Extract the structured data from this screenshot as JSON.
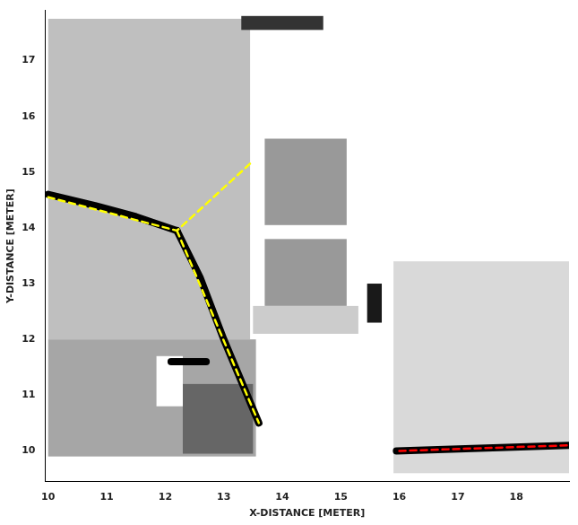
{
  "chart_data": {
    "type": "line",
    "x_label": "X-DISTANCE [METER]",
    "y_label": "Y-DISTANCE [METER]",
    "xlim": [
      9.95,
      18.9
    ],
    "ylim": [
      9.45,
      17.9
    ],
    "xticks": [
      10,
      11,
      12,
      13,
      14,
      15,
      16,
      17,
      18
    ],
    "yticks": [
      10,
      11,
      12,
      13,
      14,
      15,
      16,
      17
    ],
    "grid": false,
    "cells": [
      {
        "x": [
          10,
          13.45
        ],
        "y": [
          12.0,
          17.75
        ],
        "value": 0.25
      },
      {
        "x": [
          10,
          13.55
        ],
        "y": [
          9.9,
          12.0
        ],
        "value": 0.35
      },
      {
        "x": [
          12.3,
          13.5
        ],
        "y": [
          9.95,
          11.2
        ],
        "value": 0.6
      },
      {
        "x": [
          11.85,
          12.3
        ],
        "y": [
          10.8,
          11.7
        ],
        "value": 0
      },
      {
        "x": [
          13.3,
          14.7
        ],
        "y": [
          17.55,
          17.8
        ],
        "value": 0.8
      },
      {
        "x": [
          13.7,
          15.1
        ],
        "y": [
          14.05,
          15.6
        ],
        "value": 0.4
      },
      {
        "x": [
          13.7,
          15.1
        ],
        "y": [
          12.6,
          13.8
        ],
        "value": 0.4
      },
      {
        "x": [
          13.5,
          15.3
        ],
        "y": [
          12.1,
          12.6
        ],
        "value": 0.2
      },
      {
        "x": [
          15.45,
          15.7
        ],
        "y": [
          12.3,
          13.0
        ],
        "value": 0.9
      },
      {
        "x": [
          15.9,
          18.9
        ],
        "y": [
          9.6,
          13.4
        ],
        "value": 0.15
      }
    ],
    "series": [
      {
        "color": "#000000",
        "line_style": "solid",
        "x": [
          10,
          10.8,
          11.5,
          12.2
        ],
        "y": [
          14.6,
          14.4,
          14.2,
          13.95
        ]
      },
      {
        "color": "#000000",
        "line_style": "solid",
        "x": [
          12.2,
          12.6,
          13.0,
          13.6
        ],
        "y": [
          13.95,
          13.1,
          12.0,
          10.5
        ]
      },
      {
        "color": "#000000",
        "line_style": "solid",
        "x": [
          12.1,
          12.7
        ],
        "y": [
          11.6,
          11.6
        ]
      },
      {
        "color": "#000000",
        "line_style": "solid",
        "x": [
          15.95,
          18.9
        ],
        "y": [
          10.0,
          10.1
        ]
      },
      {
        "color": "#ffff00",
        "line_style": "dashed",
        "x": [
          10,
          12.2,
          13.5
        ],
        "y": [
          14.55,
          13.95,
          15.2
        ]
      },
      {
        "color": "#ffff00",
        "line_style": "dashed",
        "x": [
          12.2,
          13.6
        ],
        "y": [
          13.95,
          10.5
        ]
      },
      {
        "color": "#ff0000",
        "line_style": "dashed",
        "x": [
          16.0,
          18.9
        ],
        "y": [
          10.0,
          10.1
        ]
      }
    ]
  }
}
